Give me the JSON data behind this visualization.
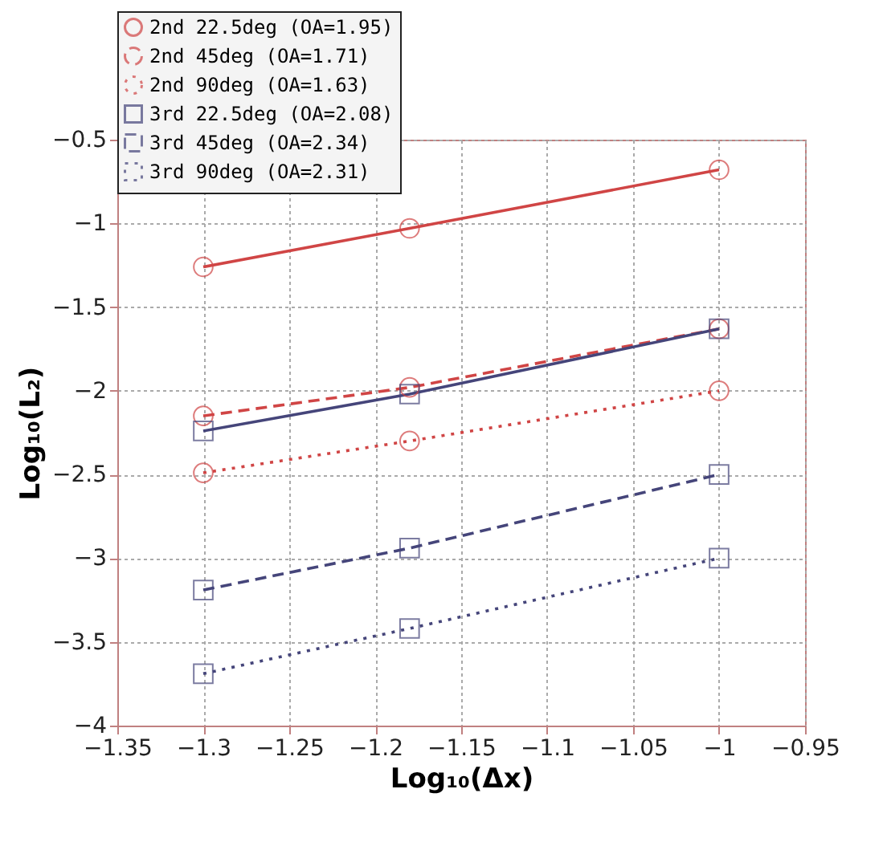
{
  "chart_data": {
    "type": "line",
    "xlabel": "Log₁₀(Δx)",
    "ylabel": "Log₁₀(L₂)",
    "x": [
      -1.3,
      -1.18,
      -1
    ],
    "series": [
      {
        "name": "2nd 22.5deg (OA=1.95)",
        "color": "#d04545",
        "marker": "circle",
        "line_style": "solid",
        "values": [
          -1.26,
          -1.03,
          -0.68
        ]
      },
      {
        "name": "2nd 45deg (OA=1.71)",
        "color": "#d04545",
        "marker": "circle",
        "line_style": "dashed",
        "values": [
          -2.15,
          -1.98,
          -1.63
        ]
      },
      {
        "name": "2nd 90deg (OA=1.63)",
        "color": "#d04545",
        "marker": "circle",
        "line_style": "dotted",
        "values": [
          -2.49,
          -2.3,
          -2.0
        ]
      },
      {
        "name": "3rd 22.5deg (OA=2.08)",
        "color": "#45457a",
        "marker": "square",
        "line_style": "solid",
        "values": [
          -2.24,
          -2.02,
          -1.63
        ]
      },
      {
        "name": "3rd 45deg (OA=2.34)",
        "color": "#45457a",
        "marker": "square",
        "line_style": "dashed",
        "values": [
          -3.19,
          -2.94,
          -2.5
        ]
      },
      {
        "name": "3rd 90deg (OA=2.31)",
        "color": "#45457a",
        "marker": "square",
        "line_style": "dotted",
        "values": [
          -3.69,
          -3.42,
          -3.0
        ]
      }
    ],
    "xlim": [
      -1.35,
      -0.95
    ],
    "xticks": [
      -1.35,
      -1.3,
      -1.25,
      -1.2,
      -1.15,
      -1.1,
      -1.05,
      -1,
      -0.95
    ],
    "ylim": [
      -4,
      -0.5
    ],
    "yticks": [
      -4,
      -3.5,
      -3,
      -2.5,
      -2,
      -1.5,
      -1,
      -0.5
    ],
    "grid": true,
    "legend": "top left"
  }
}
